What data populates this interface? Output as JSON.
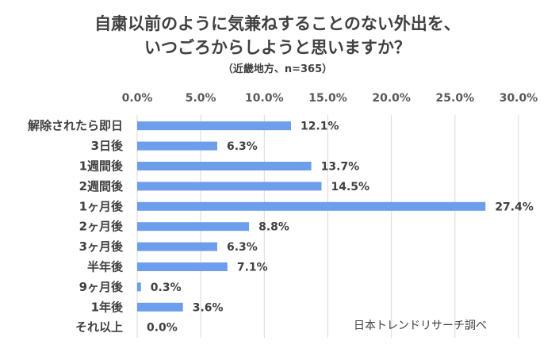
{
  "header": {
    "title_line1": "自粛以前のように気兼ねすることのない外出を、",
    "title_line2": "いつごろからしようと思いますか？",
    "subtitle": "（近畿地方、n=365）"
  },
  "credit": "日本トレンドリサーチ調べ",
  "colors": {
    "bar": "#6d9eeb",
    "grid": "#d9d9d9"
  },
  "chart_data": {
    "type": "bar",
    "orientation": "horizontal",
    "categories": [
      "解除されたら即日",
      "3日後",
      "1週間後",
      "2週間後",
      "1ヶ月後",
      "2ヶ月後",
      "3ヶ月後",
      "半年後",
      "9ヶ月後",
      "1年後",
      "それ以上"
    ],
    "values": [
      12.1,
      6.3,
      13.7,
      14.5,
      27.4,
      8.8,
      6.3,
      7.1,
      0.3,
      3.6,
      0.0
    ],
    "value_labels": [
      "12.1%",
      "6.3%",
      "13.7%",
      "14.5%",
      "27.4%",
      "8.8%",
      "6.3%",
      "7.1%",
      "0.3%",
      "3.6%",
      "0.0%"
    ],
    "xlim": [
      0,
      30
    ],
    "xticks": [
      "0.0%",
      "5.0%",
      "10.0%",
      "15.0%",
      "20.0%",
      "25.0%",
      "30.0%"
    ],
    "xaxis_position": "top",
    "grid": true,
    "legend": "none"
  }
}
